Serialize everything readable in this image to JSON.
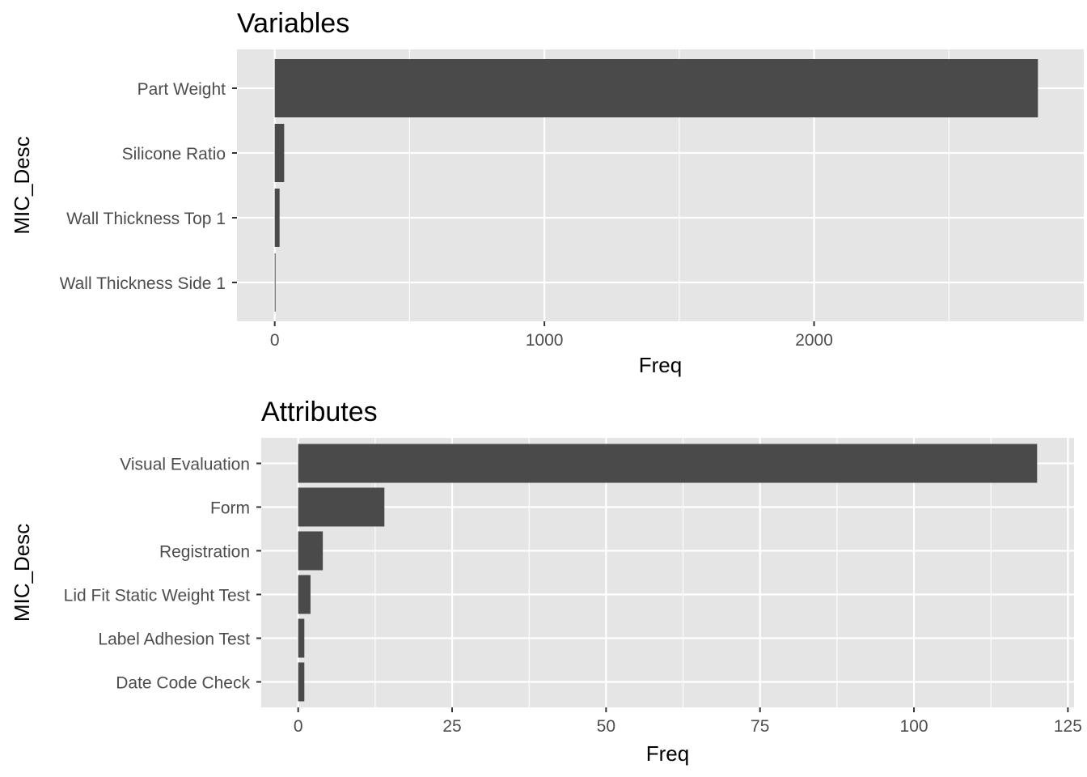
{
  "chart_data": [
    {
      "type": "bar",
      "orientation": "horizontal",
      "title": "Variables",
      "xlabel": "Freq",
      "ylabel": "MIC_Desc",
      "categories": [
        "Part Weight",
        "Silicone Ratio",
        "Wall Thickness Top 1",
        "Wall Thickness Side 1"
      ],
      "values": [
        2830,
        35,
        18,
        3
      ],
      "xlim": [
        -140,
        3000
      ],
      "xticks": [
        0,
        1000,
        2000
      ],
      "xtick_labels": [
        "0",
        "1000",
        "2000"
      ],
      "minor_xticks": [
        500,
        1500,
        2500
      ],
      "grid": true,
      "bar_color": "#4a4a4a",
      "panel_color": "#e5e5e5"
    },
    {
      "type": "bar",
      "orientation": "horizontal",
      "title": "Attributes",
      "xlabel": "Freq",
      "ylabel": "MIC_Desc",
      "categories": [
        "Visual Evaluation",
        "Form",
        "Registration",
        "Lid Fit Static Weight Test",
        "Label Adhesion Test",
        "Date Code Check"
      ],
      "values": [
        120,
        14,
        4,
        2,
        1,
        1
      ],
      "xlim": [
        -6,
        126
      ],
      "xticks": [
        0,
        25,
        50,
        75,
        100,
        125
      ],
      "xtick_labels": [
        "0",
        "25",
        "50",
        "75",
        "100",
        "125"
      ],
      "minor_xticks": [
        12.5,
        37.5,
        62.5,
        87.5,
        112.5
      ],
      "grid": true,
      "bar_color": "#4a4a4a",
      "panel_color": "#e5e5e5"
    }
  ]
}
